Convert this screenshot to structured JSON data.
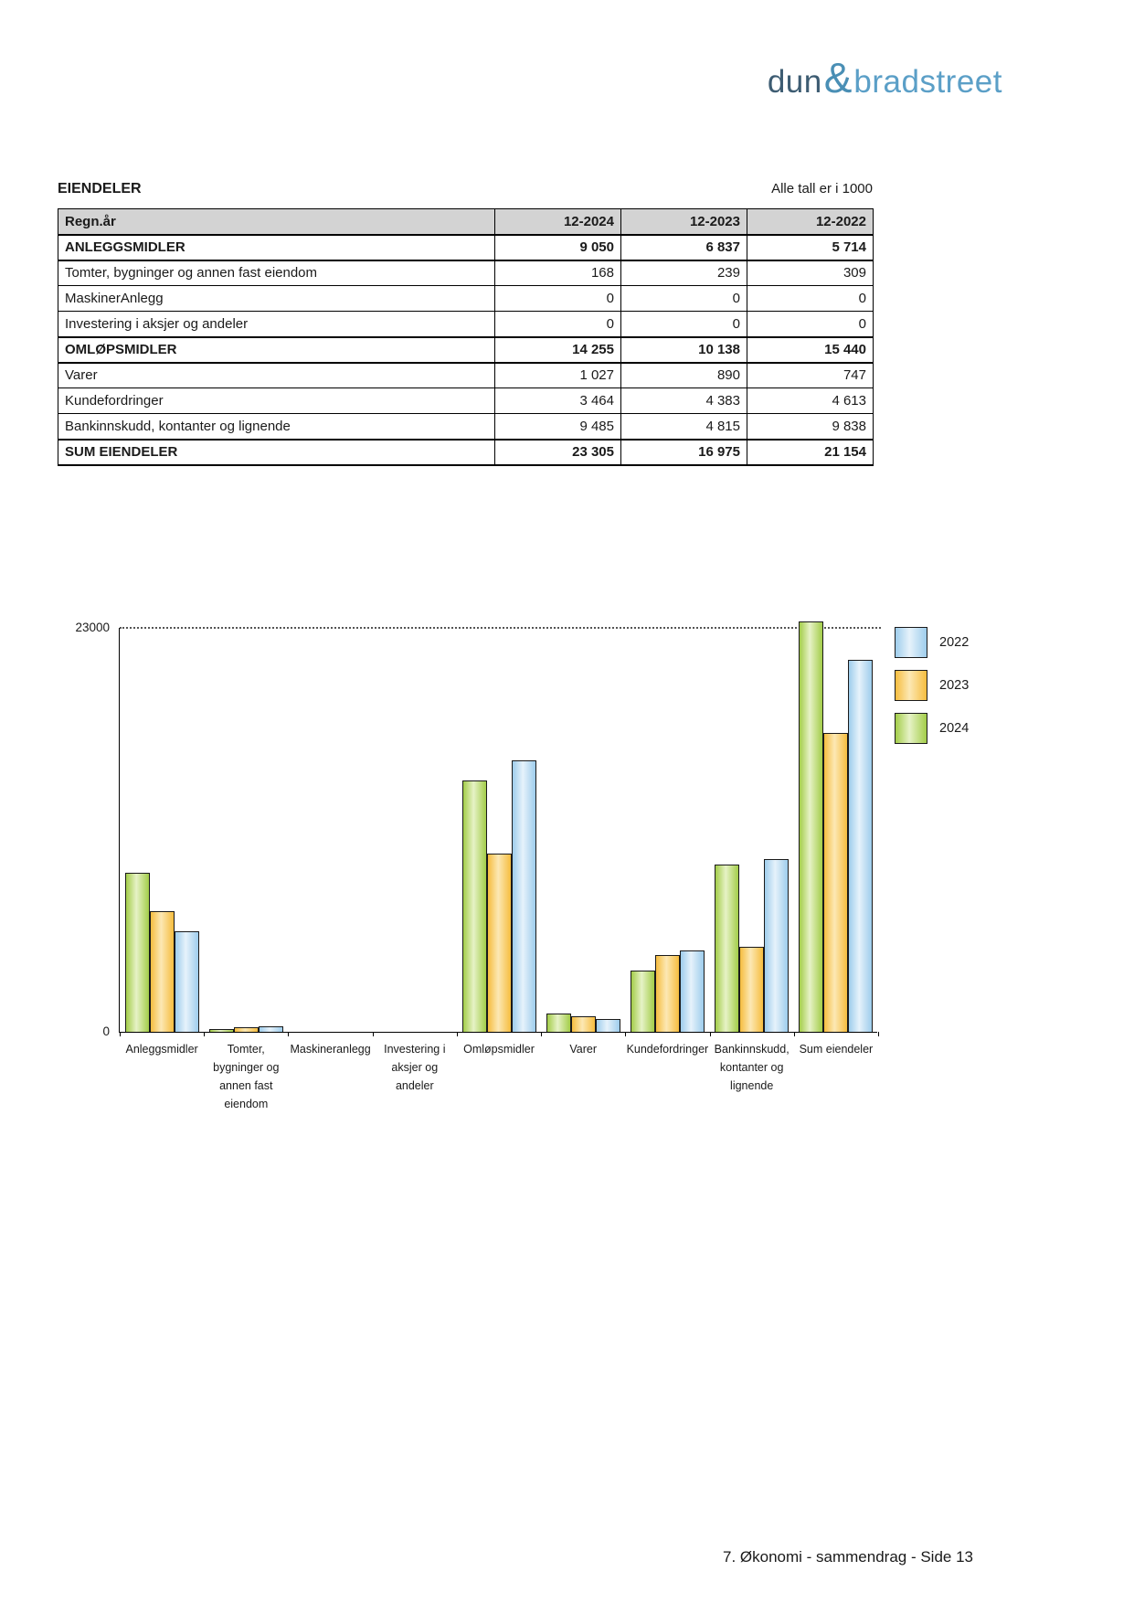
{
  "logo": {
    "dun": "dun",
    "amp": "&",
    "bradstreet": "bradstreet"
  },
  "page": {
    "footer": "7. Økonomi - sammendrag - Side 13"
  },
  "table": {
    "title": "EIENDELER",
    "note": "Alle tall er i 1000",
    "header": [
      "Regn.år",
      "12-2024",
      "12-2023",
      "12-2022"
    ],
    "rows": [
      {
        "label": "ANLEGGSMIDLER",
        "bold": true,
        "values": [
          "9 050",
          "6 837",
          "5 714"
        ]
      },
      {
        "label": "Tomter, bygninger og annen fast eiendom",
        "bold": false,
        "values": [
          "168",
          "239",
          "309"
        ]
      },
      {
        "label": "MaskinerAnlegg",
        "bold": false,
        "values": [
          "0",
          "0",
          "0"
        ]
      },
      {
        "label": "Investering i aksjer og andeler",
        "bold": false,
        "values": [
          "0",
          "0",
          "0"
        ]
      },
      {
        "label": "OMLØPSMIDLER",
        "bold": true,
        "values": [
          "14 255",
          "10 138",
          "15 440"
        ]
      },
      {
        "label": "Varer",
        "bold": false,
        "values": [
          "1 027",
          "890",
          "747"
        ]
      },
      {
        "label": "Kundefordringer",
        "bold": false,
        "values": [
          "3 464",
          "4 383",
          "4 613"
        ]
      },
      {
        "label": "Bankinnskudd, kontanter og lignende",
        "bold": false,
        "values": [
          "9 485",
          "4 815",
          "9 838"
        ]
      },
      {
        "label": "SUM EIENDELER",
        "bold": true,
        "values": [
          "23 305",
          "16 975",
          "21 154"
        ]
      }
    ]
  },
  "chart_data": {
    "type": "bar",
    "title": "",
    "xlabel": "",
    "ylabel": "",
    "ylim": [
      0,
      23000
    ],
    "ymax_label": "23000",
    "ymin_label": "0",
    "grid": "dotted-line-at-ymax",
    "legend_position": "right",
    "legend": [
      "2022",
      "2023",
      "2024"
    ],
    "categories": [
      "Anleggsmidler",
      "Tomter, bygninger og annen fast eiendom",
      "Maskineranlegg",
      "Investering i aksjer og andeler",
      "Omløpsmidler",
      "Varer",
      "Kundefordringer",
      "Bankinnskudd, kontanter og lignende",
      "Sum eiendeler"
    ],
    "category_labels": [
      [
        "Anleggsmidler"
      ],
      [
        "Tomter,",
        "bygninger og",
        "annen fast",
        "eiendom"
      ],
      [
        "Maskineranlegg"
      ],
      [
        "Investering i",
        "aksjer og",
        "andeler"
      ],
      [
        "Omløpsmidler"
      ],
      [
        "Varer"
      ],
      [
        "Kundefordringer"
      ],
      [
        "Bankinnskudd,",
        "kontanter og",
        "lignende"
      ],
      [
        "Sum eiendeler"
      ]
    ],
    "series": [
      {
        "name": "2024",
        "color": "#a3cd49",
        "highlight": "#e6f2c6",
        "values": [
          9050,
          168,
          0,
          0,
          14255,
          1027,
          3464,
          9485,
          23305
        ]
      },
      {
        "name": "2023",
        "color": "#f6bd3f",
        "highlight": "#fce8b4",
        "values": [
          6837,
          239,
          0,
          0,
          10138,
          890,
          4383,
          4815,
          16975
        ]
      },
      {
        "name": "2022",
        "color": "#9ecdec",
        "highlight": "#e6f2fb",
        "values": [
          5714,
          309,
          0,
          0,
          15440,
          747,
          4613,
          9838,
          21154
        ]
      }
    ]
  }
}
